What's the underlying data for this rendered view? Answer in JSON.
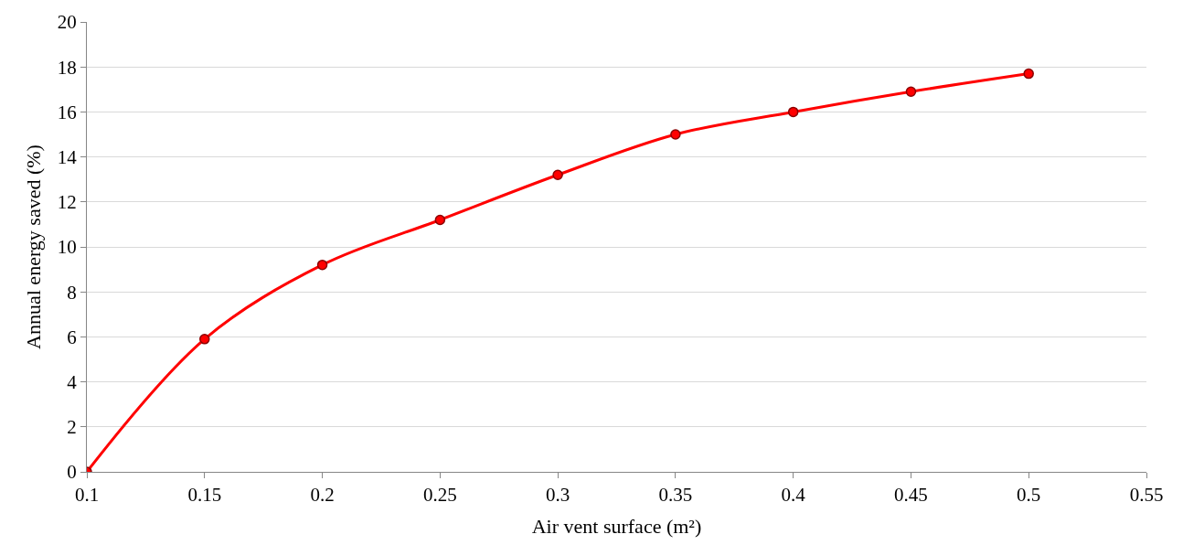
{
  "chart_data": {
    "type": "line",
    "xlabel": "Air vent surface (m²)",
    "ylabel": "Annual energy saved (%)",
    "x": [
      0.1,
      0.15,
      0.2,
      0.25,
      0.3,
      0.35,
      0.4,
      0.45,
      0.5
    ],
    "series": [
      {
        "color": "#ff0000",
        "values": [
          0,
          5.9,
          9.2,
          11.2,
          13.2,
          15.0,
          16.0,
          16.9,
          17.7
        ]
      }
    ],
    "xlim": [
      0.1,
      0.55
    ],
    "xticks": [
      0.1,
      0.15,
      0.2,
      0.25,
      0.3,
      0.35,
      0.4,
      0.45,
      0.5,
      0.55
    ],
    "ylim": [
      0,
      20
    ],
    "yticks": [
      0,
      2,
      4,
      6,
      8,
      10,
      12,
      14,
      16,
      18,
      20
    ],
    "grid": "y",
    "marker": "circle",
    "line_style": "solid"
  }
}
